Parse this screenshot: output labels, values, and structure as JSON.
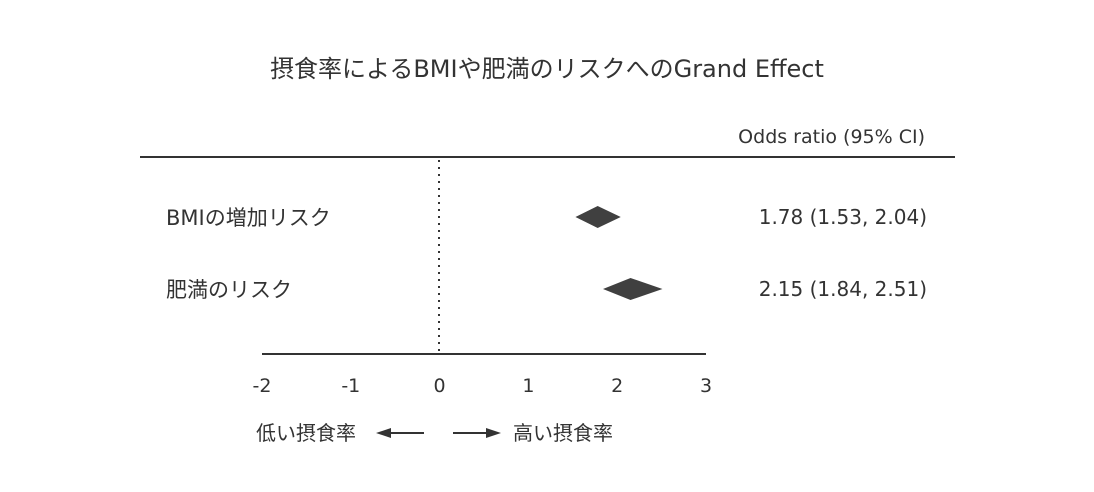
{
  "chart_data": {
    "type": "forest",
    "title": "摂食率によるBMIや肥満のリスクへのGrand Effect",
    "column_header": "Odds ratio (95% CI)",
    "rows": [
      {
        "label": "BMIの増加リスク",
        "estimate": 1.78,
        "ci_low": 1.53,
        "ci_high": 2.04,
        "text": "1.78 (1.53, 2.04)"
      },
      {
        "label": "肥満のリスク",
        "estimate": 2.15,
        "ci_low": 1.84,
        "ci_high": 2.51,
        "text": "2.15 (1.84, 2.51)"
      }
    ],
    "xlim": [
      -2,
      3
    ],
    "xticks": [
      -2,
      -1,
      0,
      1,
      2,
      3
    ],
    "reference_line": 0,
    "direction_left": "低い摂食率",
    "direction_right": "高い摂食率",
    "marker_color": "#404040",
    "line_color": "#333333"
  }
}
